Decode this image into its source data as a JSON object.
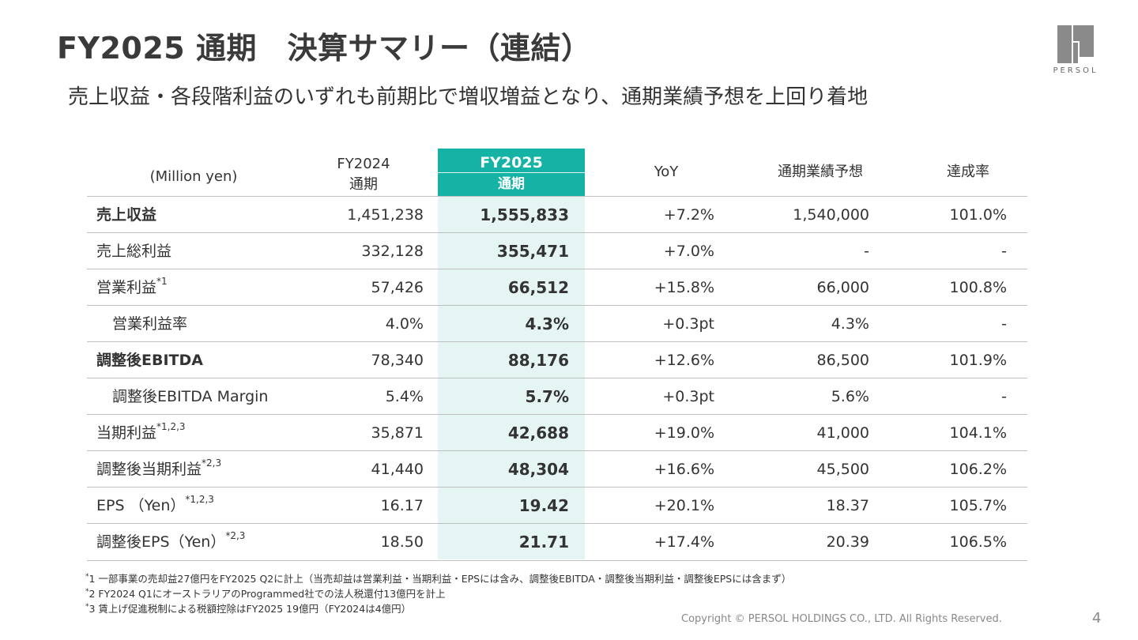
{
  "header": {
    "title": "FY2025 通期　決算サマリー（連結）",
    "subtitle": "売上収益・各段階利益のいずれも前期比で増収増益となり、通期業績予想を上回り着地"
  },
  "logo": {
    "icon": "persol-logo-icon",
    "word": "PERSOL"
  },
  "table": {
    "unit_label": "(Million yen)",
    "col_fy2024_line1": "FY2024",
    "col_fy2024_line2": "通期",
    "col_fy2025_line1": "FY2025",
    "col_fy2025_line2": "通期",
    "col_yoy": "YoY",
    "col_forecast": "通期業績予想",
    "col_rate": "達成率",
    "highlight_color": "#14b3a6",
    "rows": [
      {
        "label": "売上収益",
        "sup": "",
        "fy2024": "1,451,238",
        "fy2025": "1,555,833",
        "yoy": "+7.2%",
        "forecast": "1,540,000",
        "rate": "101.0%"
      },
      {
        "label": "売上総利益",
        "sup": "",
        "fy2024": "332,128",
        "fy2025": "355,471",
        "yoy": "+7.0%",
        "forecast": "-",
        "rate": "-"
      },
      {
        "label": "営業利益",
        "sup": "*1",
        "fy2024": "57,426",
        "fy2025": "66,512",
        "yoy": "+15.8%",
        "forecast": "66,000",
        "rate": "100.8%"
      },
      {
        "label": "営業利益率",
        "sup": "",
        "fy2024": "4.0%",
        "fy2025": "4.3%",
        "yoy": "+0.3pt",
        "forecast": "4.3%",
        "rate": "-"
      },
      {
        "label": "調整後EBITDA",
        "sup": "",
        "fy2024": "78,340",
        "fy2025": "88,176",
        "yoy": "+12.6%",
        "forecast": "86,500",
        "rate": "101.9%"
      },
      {
        "label": "調整後EBITDA Margin",
        "sup": "",
        "fy2024": "5.4%",
        "fy2025": "5.7%",
        "yoy": "+0.3pt",
        "forecast": "5.6%",
        "rate": "-"
      },
      {
        "label": "当期利益",
        "sup": "*1,2,3",
        "fy2024": "35,871",
        "fy2025": "42,688",
        "yoy": "+19.0%",
        "forecast": "41,000",
        "rate": "104.1%"
      },
      {
        "label": "調整後当期利益",
        "sup": "*2,3",
        "fy2024": "41,440",
        "fy2025": "48,304",
        "yoy": "+16.6%",
        "forecast": "45,500",
        "rate": "106.2%"
      },
      {
        "label": "EPS （Yen）",
        "sup": "*1,2,3",
        "fy2024": "16.17",
        "fy2025": "19.42",
        "yoy": "+20.1%",
        "forecast": "18.37",
        "rate": "105.7%"
      },
      {
        "label": "調整後EPS（Yen）",
        "sup": "*2,3",
        "fy2024": "18.50",
        "fy2025": "21.71",
        "yoy": "+17.4%",
        "forecast": "20.39",
        "rate": "106.5%"
      }
    ]
  },
  "notes": {
    "n1_mark": "*",
    "n1": "1 一部事業の売却益27億円をFY2025 Q2に計上（当売却益は営業利益・当期利益・EPSには含み、調整後EBITDA・調整後当期利益・調整後EPSには含まず）",
    "n2_mark": "*",
    "n2": "2 FY2024 Q1にオーストラリアのProgrammed社での法人税還付13億円を計上",
    "n3_mark": "*",
    "n3": "3 賃上げ促進税制による税額控除はFY2025 19億円（FY2024は4億円）"
  },
  "footer": {
    "copyright": "Copyright © PERSOL HOLDINGS CO., LTD. All Rights Reserved.",
    "page": "4"
  }
}
